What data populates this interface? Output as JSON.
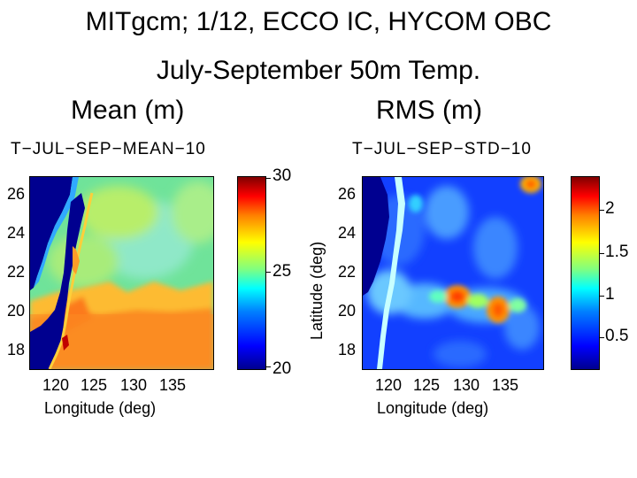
{
  "header": {
    "title": "MITgcm; 1/12, ECCO IC, HYCOM OBC",
    "subtitle": "July-September 50m Temp.",
    "mean_label": "Mean  (m)",
    "rms_label": "RMS  (m)"
  },
  "chart_data": [
    {
      "type": "heatmap",
      "title": "T−JUL−SEP−MEAN−10",
      "xlabel": "Longitude (deg)",
      "ylabel": "",
      "x_ticks": [
        "120",
        "125",
        "130",
        "135"
      ],
      "y_ticks": [
        "26",
        "24",
        "22",
        "20",
        "18"
      ],
      "xlim": [
        116.5,
        140
      ],
      "ylim": [
        16.9,
        27.5
      ],
      "colorbar": {
        "ticks": [
          "30",
          "25",
          "20"
        ],
        "range": [
          20,
          30
        ],
        "colormap": "jet"
      },
      "regions": [
        {
          "name": "land",
          "color": "#00008f"
        },
        {
          "name": "north-basin",
          "value": 25.5
        },
        {
          "name": "south-band",
          "value": 28.5
        }
      ]
    },
    {
      "type": "heatmap",
      "title": "T−JUL−SEP−STD−10",
      "xlabel": "Longitude (deg)",
      "ylabel": "Latitude (deg)",
      "x_ticks": [
        "120",
        "125",
        "130",
        "135"
      ],
      "y_ticks": [
        "26",
        "24",
        "22",
        "20",
        "18"
      ],
      "xlim": [
        116.5,
        140
      ],
      "ylim": [
        16.9,
        27.5
      ],
      "colorbar": {
        "ticks": [
          "2",
          "1.5",
          "1",
          "0.5"
        ],
        "range": [
          0.2,
          2.4
        ],
        "colormap": "jet"
      },
      "hotspots": [
        {
          "lon": 128.2,
          "lat": 20.8,
          "value": 1.9
        },
        {
          "lon": 134.8,
          "lat": 20.2,
          "value": 1.8
        },
        {
          "lon": 138.8,
          "lat": 26.9,
          "value": 1.8
        }
      ]
    }
  ]
}
